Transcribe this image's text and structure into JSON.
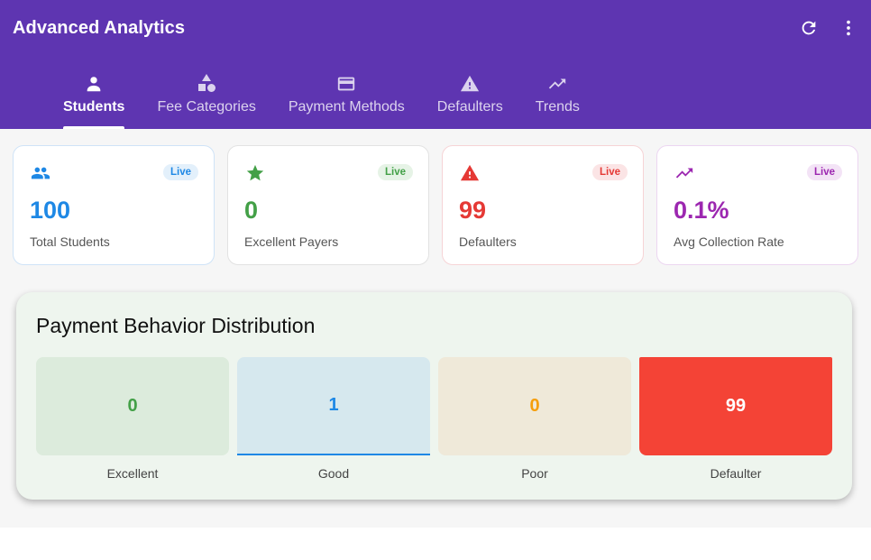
{
  "app": {
    "title": "Advanced Analytics"
  },
  "actions": {
    "refresh_icon": "refresh-icon",
    "more_icon": "more-vert-icon"
  },
  "tabs": [
    {
      "label": "Students",
      "icon": "person-icon",
      "active": true
    },
    {
      "label": "Fee Categories",
      "icon": "category-icon",
      "active": false
    },
    {
      "label": "Payment Methods",
      "icon": "credit-card-icon",
      "active": false
    },
    {
      "label": "Defaulters",
      "icon": "warning-icon",
      "active": false
    },
    {
      "label": "Trends",
      "icon": "trending-up-icon",
      "active": false
    }
  ],
  "stats": [
    {
      "value": "100",
      "label": "Total Students",
      "badge": "Live",
      "icon": "group-icon",
      "color": "#1e88e5",
      "border": "#cfe3f7",
      "badge_bg": "#e3f0fb"
    },
    {
      "value": "0",
      "label": "Excellent Payers",
      "badge": "Live",
      "icon": "star-icon",
      "color": "#43a047",
      "border": "#e2e2e2",
      "badge_bg": "#e6f3e6"
    },
    {
      "value": "99",
      "label": "Defaulters",
      "badge": "Live",
      "icon": "warning-icon",
      "color": "#e53935",
      "border": "#f6d4d6",
      "badge_bg": "#fbe4e5"
    },
    {
      "value": "0.1%",
      "label": "Avg Collection Rate",
      "badge": "Live",
      "icon": "trending-up-icon",
      "color": "#9c27b0",
      "border": "#ecd6f1",
      "badge_bg": "#f3e3f6"
    }
  ],
  "distribution": {
    "title": "Payment Behavior Distribution",
    "items": [
      {
        "label": "Excellent",
        "value": "0",
        "color": "#43a047",
        "bg": "#dcebdc"
      },
      {
        "label": "Good",
        "value": "1",
        "color": "#1e88e5",
        "bg": "#d6e8ee"
      },
      {
        "label": "Poor",
        "value": "0",
        "color": "#f59e0b",
        "bg": "#efe9d9"
      },
      {
        "label": "Defaulter",
        "value": "99",
        "color": "#ffffff",
        "bg": "#f44336"
      }
    ]
  }
}
